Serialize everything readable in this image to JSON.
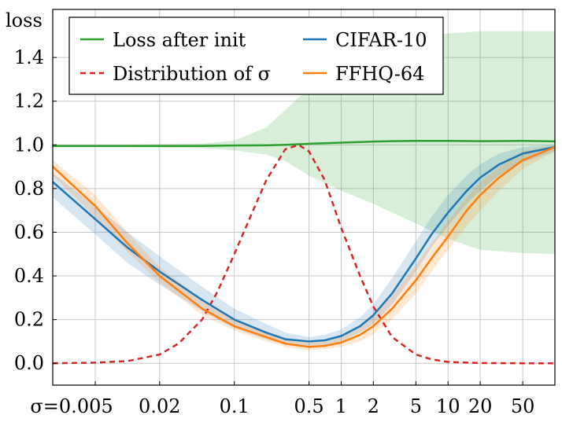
{
  "chart_data": {
    "type": "line",
    "title": "",
    "xlabel": "",
    "ylabel": "loss",
    "x_scale": "log",
    "xlim": [
      0.002,
      100
    ],
    "ylim": [
      -0.1,
      1.62
    ],
    "grid": true,
    "x_ticks": [
      {
        "value": 0.005,
        "label": "σ=0.005"
      },
      {
        "value": 0.02,
        "label": "0.02"
      },
      {
        "value": 0.1,
        "label": "0.1"
      },
      {
        "value": 0.5,
        "label": "0.5"
      },
      {
        "value": 1,
        "label": "1"
      },
      {
        "value": 2,
        "label": "2"
      },
      {
        "value": 5,
        "label": "5"
      },
      {
        "value": 10,
        "label": "10"
      },
      {
        "value": 20,
        "label": "20"
      },
      {
        "value": 50,
        "label": "50"
      }
    ],
    "y_ticks": [
      {
        "value": 0.0,
        "label": "0.0"
      },
      {
        "value": 0.2,
        "label": "0.2"
      },
      {
        "value": 0.4,
        "label": "0.4"
      },
      {
        "value": 0.6,
        "label": "0.6"
      },
      {
        "value": 0.8,
        "label": "0.8"
      },
      {
        "value": 1.0,
        "label": "1.0"
      },
      {
        "value": 1.2,
        "label": "1.2"
      },
      {
        "value": 1.4,
        "label": "1.4"
      }
    ],
    "legend_position": "top",
    "series": [
      {
        "name": "Loss after init",
        "color": "#2ca02c",
        "style": "solid",
        "x": [
          0.002,
          0.01,
          0.05,
          0.1,
          0.2,
          0.3,
          0.5,
          1,
          2,
          3,
          5,
          10,
          20,
          50,
          100
        ],
        "y": [
          0.995,
          0.995,
          0.995,
          0.997,
          0.998,
          1.0,
          1.005,
          1.01,
          1.015,
          1.017,
          1.018,
          1.018,
          1.017,
          1.018,
          1.016
        ],
        "lower": [
          0.99,
          0.99,
          0.985,
          0.975,
          0.955,
          0.925,
          0.86,
          0.79,
          0.73,
          0.69,
          0.64,
          0.57,
          0.52,
          0.505,
          0.5
        ],
        "upper": [
          1.0,
          1.0,
          1.005,
          1.02,
          1.08,
          1.16,
          1.26,
          1.36,
          1.43,
          1.47,
          1.5,
          1.51,
          1.52,
          1.52,
          1.52
        ]
      },
      {
        "name": "Distribution of σ",
        "color": "#d62728",
        "style": "dashed",
        "x": [
          0.002,
          0.005,
          0.01,
          0.02,
          0.03,
          0.05,
          0.07,
          0.1,
          0.15,
          0.2,
          0.3,
          0.4,
          0.5,
          0.7,
          1,
          1.5,
          2,
          3,
          5,
          7,
          10,
          20,
          50,
          100
        ],
        "y": [
          0.0,
          0.003,
          0.01,
          0.04,
          0.09,
          0.2,
          0.33,
          0.5,
          0.7,
          0.84,
          0.98,
          1.0,
          0.97,
          0.84,
          0.62,
          0.4,
          0.26,
          0.12,
          0.04,
          0.018,
          0.006,
          0.001,
          0.0,
          0.0
        ]
      },
      {
        "name": "CIFAR-10",
        "color": "#1f77b4",
        "style": "solid",
        "x": [
          0.002,
          0.005,
          0.01,
          0.02,
          0.05,
          0.1,
          0.2,
          0.3,
          0.5,
          0.7,
          1,
          1.5,
          2,
          3,
          5,
          7,
          10,
          15,
          20,
          30,
          50,
          100
        ],
        "y": [
          0.83,
          0.66,
          0.53,
          0.42,
          0.29,
          0.2,
          0.14,
          0.11,
          0.1,
          0.105,
          0.125,
          0.17,
          0.22,
          0.32,
          0.48,
          0.59,
          0.69,
          0.79,
          0.85,
          0.91,
          0.96,
          0.99
        ],
        "lower": [
          0.76,
          0.59,
          0.46,
          0.36,
          0.24,
          0.16,
          0.11,
          0.085,
          0.08,
          0.085,
          0.1,
          0.14,
          0.18,
          0.27,
          0.42,
          0.53,
          0.63,
          0.73,
          0.79,
          0.86,
          0.92,
          0.97
        ],
        "upper": [
          0.87,
          0.72,
          0.6,
          0.49,
          0.35,
          0.25,
          0.18,
          0.14,
          0.12,
          0.13,
          0.155,
          0.21,
          0.27,
          0.39,
          0.56,
          0.67,
          0.77,
          0.86,
          0.91,
          0.96,
          0.99,
          1.0
        ]
      },
      {
        "name": "FFHQ-64",
        "color": "#ff7f0e",
        "style": "solid",
        "x": [
          0.002,
          0.005,
          0.01,
          0.02,
          0.05,
          0.1,
          0.2,
          0.3,
          0.5,
          0.7,
          1,
          1.5,
          2,
          3,
          5,
          7,
          10,
          15,
          20,
          30,
          50,
          100
        ],
        "y": [
          0.9,
          0.72,
          0.55,
          0.4,
          0.25,
          0.17,
          0.12,
          0.09,
          0.075,
          0.08,
          0.095,
          0.13,
          0.17,
          0.25,
          0.38,
          0.48,
          0.58,
          0.7,
          0.77,
          0.85,
          0.93,
          0.99
        ],
        "lower": [
          0.86,
          0.67,
          0.51,
          0.37,
          0.22,
          0.15,
          0.1,
          0.075,
          0.06,
          0.065,
          0.075,
          0.1,
          0.135,
          0.2,
          0.32,
          0.42,
          0.52,
          0.63,
          0.7,
          0.79,
          0.89,
          0.97
        ],
        "upper": [
          0.93,
          0.77,
          0.6,
          0.44,
          0.29,
          0.2,
          0.145,
          0.115,
          0.1,
          0.105,
          0.125,
          0.17,
          0.215,
          0.31,
          0.45,
          0.55,
          0.65,
          0.76,
          0.83,
          0.9,
          0.97,
          1.0
        ]
      }
    ]
  },
  "legend": {
    "items": [
      {
        "label": "Loss after init",
        "color": "#2ca02c",
        "style": "solid"
      },
      {
        "label": "CIFAR-10",
        "color": "#1f77b4",
        "style": "solid"
      },
      {
        "label": "Distribution of σ",
        "color": "#d62728",
        "style": "dashed"
      },
      {
        "label": "FFHQ-64",
        "color": "#ff7f0e",
        "style": "solid"
      }
    ]
  }
}
